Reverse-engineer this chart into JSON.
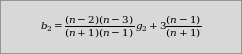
{
  "formula": "$b_2 = \\dfrac{(n-2)(n-3)}{(n+1)(n-1)}\\,g_2 + 3\\dfrac{(n-1)}{(n+1)}$",
  "background_color": "#d8d8d8",
  "border_color": "#888888",
  "text_color": "#000000",
  "font_size": 7.5,
  "figwidth": 2.42,
  "figheight": 0.54,
  "dpi": 100
}
